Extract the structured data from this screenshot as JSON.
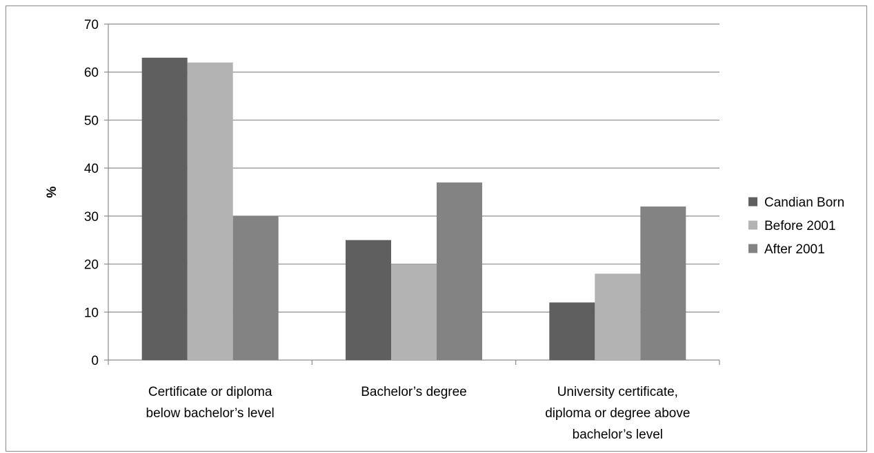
{
  "chart_data": {
    "type": "bar",
    "title": "",
    "xlabel": "",
    "ylabel": "%",
    "ylim": [
      0,
      70
    ],
    "yticks": [
      0,
      10,
      20,
      30,
      40,
      50,
      60,
      70
    ],
    "grid": true,
    "legend_position": "right",
    "categories": [
      [
        "Certificate or diploma",
        "below bachelor’s level"
      ],
      [
        "Bachelor’s degree"
      ],
      [
        "University certificate,",
        "diploma or degree above",
        "bachelor’s level"
      ]
    ],
    "series": [
      {
        "name": "Candian Born",
        "color": "#5f5f5f",
        "values": [
          63,
          25,
          12
        ]
      },
      {
        "name": "Before 2001",
        "color": "#b3b3b3",
        "values": [
          62,
          20,
          18
        ]
      },
      {
        "name": "After 2001",
        "color": "#838383",
        "values": [
          30,
          37,
          32
        ]
      }
    ]
  }
}
